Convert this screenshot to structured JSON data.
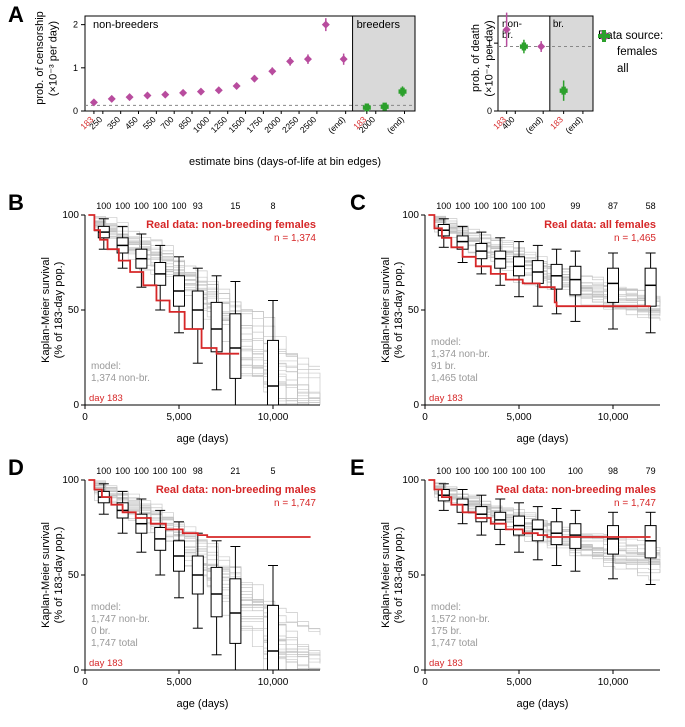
{
  "colors": {
    "female": "#b84c9e",
    "all": "#2ca02c",
    "red": "#d62728",
    "sim_line": "#bfbfbf",
    "box_stroke": "#000000",
    "axis": "#000000",
    "shade": "#d9d9d9",
    "grid_dash": "#888888"
  },
  "panel_letters": {
    "A": "A",
    "B": "B",
    "C": "C",
    "D": "D",
    "E": "E"
  },
  "legend": {
    "title": "Data source:",
    "items": [
      {
        "label": "females",
        "color": "#b84c9e",
        "marker": "diamond"
      },
      {
        "label": "all",
        "color": "#2ca02c",
        "marker": "plus"
      }
    ]
  },
  "panelA": {
    "left": {
      "ylabel_line1": "prob. of censorship",
      "ylabel_line2": "(×10⁻³ per day)",
      "ylim": [
        0,
        2.2
      ],
      "yticks": [
        0,
        1,
        2
      ],
      "annotations": {
        "nonbreeders": "non-breeders",
        "breeders": "breeders"
      },
      "nonbreeders": {
        "x_ticks": [
          "183",
          "250",
          "350",
          "450",
          "550",
          "700",
          "850",
          "1000",
          "1250",
          "1500",
          "1750",
          "2000",
          "2250",
          "2500",
          "(end)"
        ],
        "red_ticks": [
          0
        ],
        "values": [
          0.2,
          0.28,
          0.32,
          0.36,
          0.38,
          0.42,
          0.45,
          0.48,
          0.58,
          0.75,
          0.92,
          1.15,
          1.2,
          2.0,
          1.2
        ],
        "err": [
          0.05,
          0.05,
          0.05,
          0.06,
          0.06,
          0.06,
          0.06,
          0.07,
          0.07,
          0.08,
          0.09,
          0.1,
          0.11,
          0.15,
          0.13
        ]
      },
      "breeders": {
        "x_ticks": [
          "183",
          "2000",
          "(end)"
        ],
        "red_ticks": [
          0
        ],
        "values": [
          0.08,
          0.1,
          0.45
        ],
        "err": [
          0.05,
          0.05,
          0.12
        ]
      }
    },
    "right": {
      "ylabel_line1": "prob. of death",
      "ylabel_line2": "(×10⁻⁴ per day)",
      "ylim": [
        0,
        1.4
      ],
      "yticks": [
        0,
        1
      ],
      "annotations": {
        "nonbr": "non-\nbr.",
        "br": "br."
      },
      "nonbreeders": {
        "x_ticks": [
          "183",
          "400",
          "(end)"
        ],
        "red_ticks": [
          0
        ],
        "series": [
          {
            "source": "female",
            "values": [
              1.2,
              null,
              0.95
            ],
            "err": [
              0.25,
              null,
              0.08
            ]
          },
          {
            "source": "all",
            "values": [
              null,
              0.95,
              null
            ],
            "err": [
              null,
              0.1,
              null
            ]
          }
        ]
      },
      "breeders": {
        "x_ticks": [
          "183",
          "(end)"
        ],
        "red_ticks": [
          0
        ],
        "series": [
          {
            "source": "all",
            "values": [
              0.3,
              null
            ],
            "err": [
              0.15,
              null
            ]
          }
        ]
      }
    },
    "xlabel": "estimate bins (days-of-life at bin edges)"
  },
  "km_common": {
    "ylabel_line1": "Kaplan-Meier survival",
    "ylabel_line2": "(% of 183-day pop.)",
    "xlabel": "age (days)",
    "xlim": [
      0,
      12500
    ],
    "xticks": [
      0,
      5000,
      10000
    ],
    "ylim": [
      0,
      100
    ],
    "yticks": [
      0,
      50,
      100
    ],
    "day183_label": "day 183",
    "sim_line_color": "#bfbfbf",
    "real_color": "#d62728",
    "box_color": "#000000",
    "n_sim_lines_shown": 22,
    "box_positions_x": [
      1000,
      2000,
      3000,
      4000,
      5000,
      6000,
      7000,
      8000,
      10000
    ]
  },
  "panelB": {
    "title": "Real data: non-breeding females",
    "n": "n = 1,374",
    "top_counts": [
      "100",
      "100",
      "100",
      "100",
      "100",
      "93",
      "",
      "15",
      "8"
    ],
    "model_lines": [
      "model:",
      "1,374 non-br."
    ],
    "real_curve": [
      [
        183,
        100
      ],
      [
        500,
        92
      ],
      [
        800,
        87
      ],
      [
        1200,
        82
      ],
      [
        1800,
        76
      ],
      [
        2400,
        70
      ],
      [
        3100,
        63
      ],
      [
        3800,
        55
      ],
      [
        4500,
        49
      ],
      [
        5300,
        40
      ],
      [
        6200,
        30
      ],
      [
        7000,
        27
      ],
      [
        8200,
        27
      ]
    ],
    "boxes": [
      {
        "x": 1000,
        "q1": 88,
        "med": 91,
        "q3": 94,
        "lo": 82,
        "hi": 98
      },
      {
        "x": 2000,
        "q1": 80,
        "med": 84,
        "q3": 88,
        "lo": 72,
        "hi": 94
      },
      {
        "x": 3000,
        "q1": 72,
        "med": 77,
        "q3": 82,
        "lo": 62,
        "hi": 90
      },
      {
        "x": 4000,
        "q1": 63,
        "med": 69,
        "q3": 75,
        "lo": 50,
        "hi": 84
      },
      {
        "x": 5000,
        "q1": 52,
        "med": 60,
        "q3": 68,
        "lo": 38,
        "hi": 78
      },
      {
        "x": 6000,
        "q1": 40,
        "med": 50,
        "q3": 60,
        "lo": 22,
        "hi": 72
      },
      {
        "x": 7000,
        "q1": 28,
        "med": 40,
        "q3": 54,
        "lo": 8,
        "hi": 68
      },
      {
        "x": 8000,
        "q1": 14,
        "med": 30,
        "q3": 48,
        "lo": 0,
        "hi": 65
      },
      {
        "x": 10000,
        "q1": 0,
        "med": 10,
        "q3": 34,
        "lo": 0,
        "hi": 55
      }
    ]
  },
  "panelC": {
    "title": "Real data: all females",
    "n": "n = 1,465",
    "top_counts": [
      "100",
      "100",
      "100",
      "100",
      "100",
      "100",
      "",
      "99",
      "87",
      "58"
    ],
    "model_lines": [
      "model:",
      "1,374 non-br.",
      "91 br.",
      "1,465 total"
    ],
    "real_curve": [
      [
        183,
        100
      ],
      [
        500,
        93
      ],
      [
        900,
        88
      ],
      [
        1400,
        83
      ],
      [
        2000,
        78
      ],
      [
        2700,
        73
      ],
      [
        3500,
        69
      ],
      [
        4300,
        66
      ],
      [
        5200,
        64
      ],
      [
        6100,
        62
      ],
      [
        6900,
        54
      ],
      [
        7000,
        52
      ],
      [
        12000,
        52
      ]
    ],
    "boxes": [
      {
        "x": 1000,
        "q1": 89,
        "med": 92,
        "q3": 95,
        "lo": 83,
        "hi": 98
      },
      {
        "x": 2000,
        "q1": 82,
        "med": 86,
        "q3": 89,
        "lo": 75,
        "hi": 94
      },
      {
        "x": 3000,
        "q1": 77,
        "med": 81,
        "q3": 85,
        "lo": 69,
        "hi": 91
      },
      {
        "x": 4000,
        "q1": 72,
        "med": 77,
        "q3": 81,
        "lo": 63,
        "hi": 88
      },
      {
        "x": 5000,
        "q1": 68,
        "med": 73,
        "q3": 78,
        "lo": 57,
        "hi": 86
      },
      {
        "x": 6000,
        "q1": 64,
        "med": 70,
        "q3": 76,
        "lo": 52,
        "hi": 84
      },
      {
        "x": 7000,
        "q1": 61,
        "med": 68,
        "q3": 74,
        "lo": 48,
        "hi": 82
      },
      {
        "x": 8000,
        "q1": 58,
        "med": 66,
        "q3": 73,
        "lo": 44,
        "hi": 81
      },
      {
        "x": 10000,
        "q1": 54,
        "med": 64,
        "q3": 72,
        "lo": 40,
        "hi": 80
      },
      {
        "x": 12000,
        "q1": 52,
        "med": 63,
        "q3": 72,
        "lo": 38,
        "hi": 80
      }
    ]
  },
  "panelD": {
    "title": "Real data: non-breeding males",
    "n": "n = 1,747",
    "top_counts": [
      "100",
      "100",
      "100",
      "100",
      "100",
      "98",
      "",
      "21",
      "5"
    ],
    "model_lines": [
      "model:",
      "1,747 non-br.",
      "0 br.",
      "1,747 total"
    ],
    "real_curve": [
      [
        183,
        100
      ],
      [
        500,
        95
      ],
      [
        900,
        91
      ],
      [
        1400,
        87
      ],
      [
        2000,
        83
      ],
      [
        2700,
        80
      ],
      [
        3500,
        77
      ],
      [
        4300,
        74
      ],
      [
        5200,
        72
      ],
      [
        6000,
        71
      ],
      [
        6500,
        70
      ],
      [
        12000,
        70
      ]
    ],
    "boxes": [
      {
        "x": 1000,
        "q1": 88,
        "med": 91,
        "q3": 94,
        "lo": 82,
        "hi": 98
      },
      {
        "x": 2000,
        "q1": 80,
        "med": 84,
        "q3": 88,
        "lo": 72,
        "hi": 94
      },
      {
        "x": 3000,
        "q1": 72,
        "med": 77,
        "q3": 82,
        "lo": 62,
        "hi": 90
      },
      {
        "x": 4000,
        "q1": 63,
        "med": 69,
        "q3": 75,
        "lo": 50,
        "hi": 84
      },
      {
        "x": 5000,
        "q1": 52,
        "med": 60,
        "q3": 68,
        "lo": 38,
        "hi": 78
      },
      {
        "x": 6000,
        "q1": 40,
        "med": 50,
        "q3": 60,
        "lo": 22,
        "hi": 72
      },
      {
        "x": 7000,
        "q1": 28,
        "med": 40,
        "q3": 54,
        "lo": 8,
        "hi": 68
      },
      {
        "x": 8000,
        "q1": 14,
        "med": 30,
        "q3": 48,
        "lo": 0,
        "hi": 65
      },
      {
        "x": 10000,
        "q1": 0,
        "med": 10,
        "q3": 34,
        "lo": 0,
        "hi": 55
      }
    ]
  },
  "panelE": {
    "title": "Real data: non-breeding males",
    "n": "n = 1,747",
    "top_counts": [
      "100",
      "100",
      "100",
      "100",
      "100",
      "100",
      "",
      "100",
      "98",
      "79"
    ],
    "model_lines": [
      "model:",
      "1,572 non-br.",
      "175 br.",
      "1,747 total"
    ],
    "real_curve": [
      [
        183,
        100
      ],
      [
        500,
        95
      ],
      [
        900,
        91
      ],
      [
        1400,
        87
      ],
      [
        2000,
        83
      ],
      [
        2700,
        80
      ],
      [
        3500,
        77
      ],
      [
        4300,
        74
      ],
      [
        5200,
        72
      ],
      [
        6000,
        71
      ],
      [
        6500,
        70
      ],
      [
        12000,
        70
      ]
    ],
    "boxes": [
      {
        "x": 1000,
        "q1": 89,
        "med": 92,
        "q3": 95,
        "lo": 84,
        "hi": 98
      },
      {
        "x": 2000,
        "q1": 83,
        "med": 87,
        "q3": 90,
        "lo": 77,
        "hi": 95
      },
      {
        "x": 3000,
        "q1": 78,
        "med": 82,
        "q3": 86,
        "lo": 71,
        "hi": 92
      },
      {
        "x": 4000,
        "q1": 74,
        "med": 79,
        "q3": 83,
        "lo": 66,
        "hi": 90
      },
      {
        "x": 5000,
        "q1": 71,
        "med": 76,
        "q3": 81,
        "lo": 62,
        "hi": 88
      },
      {
        "x": 6000,
        "q1": 68,
        "med": 74,
        "q3": 79,
        "lo": 58,
        "hi": 86
      },
      {
        "x": 7000,
        "q1": 66,
        "med": 72,
        "q3": 78,
        "lo": 55,
        "hi": 85
      },
      {
        "x": 8000,
        "q1": 64,
        "med": 71,
        "q3": 77,
        "lo": 52,
        "hi": 84
      },
      {
        "x": 10000,
        "q1": 61,
        "med": 69,
        "q3": 76,
        "lo": 48,
        "hi": 83
      },
      {
        "x": 12000,
        "q1": 59,
        "med": 68,
        "q3": 76,
        "lo": 45,
        "hi": 83
      }
    ]
  }
}
